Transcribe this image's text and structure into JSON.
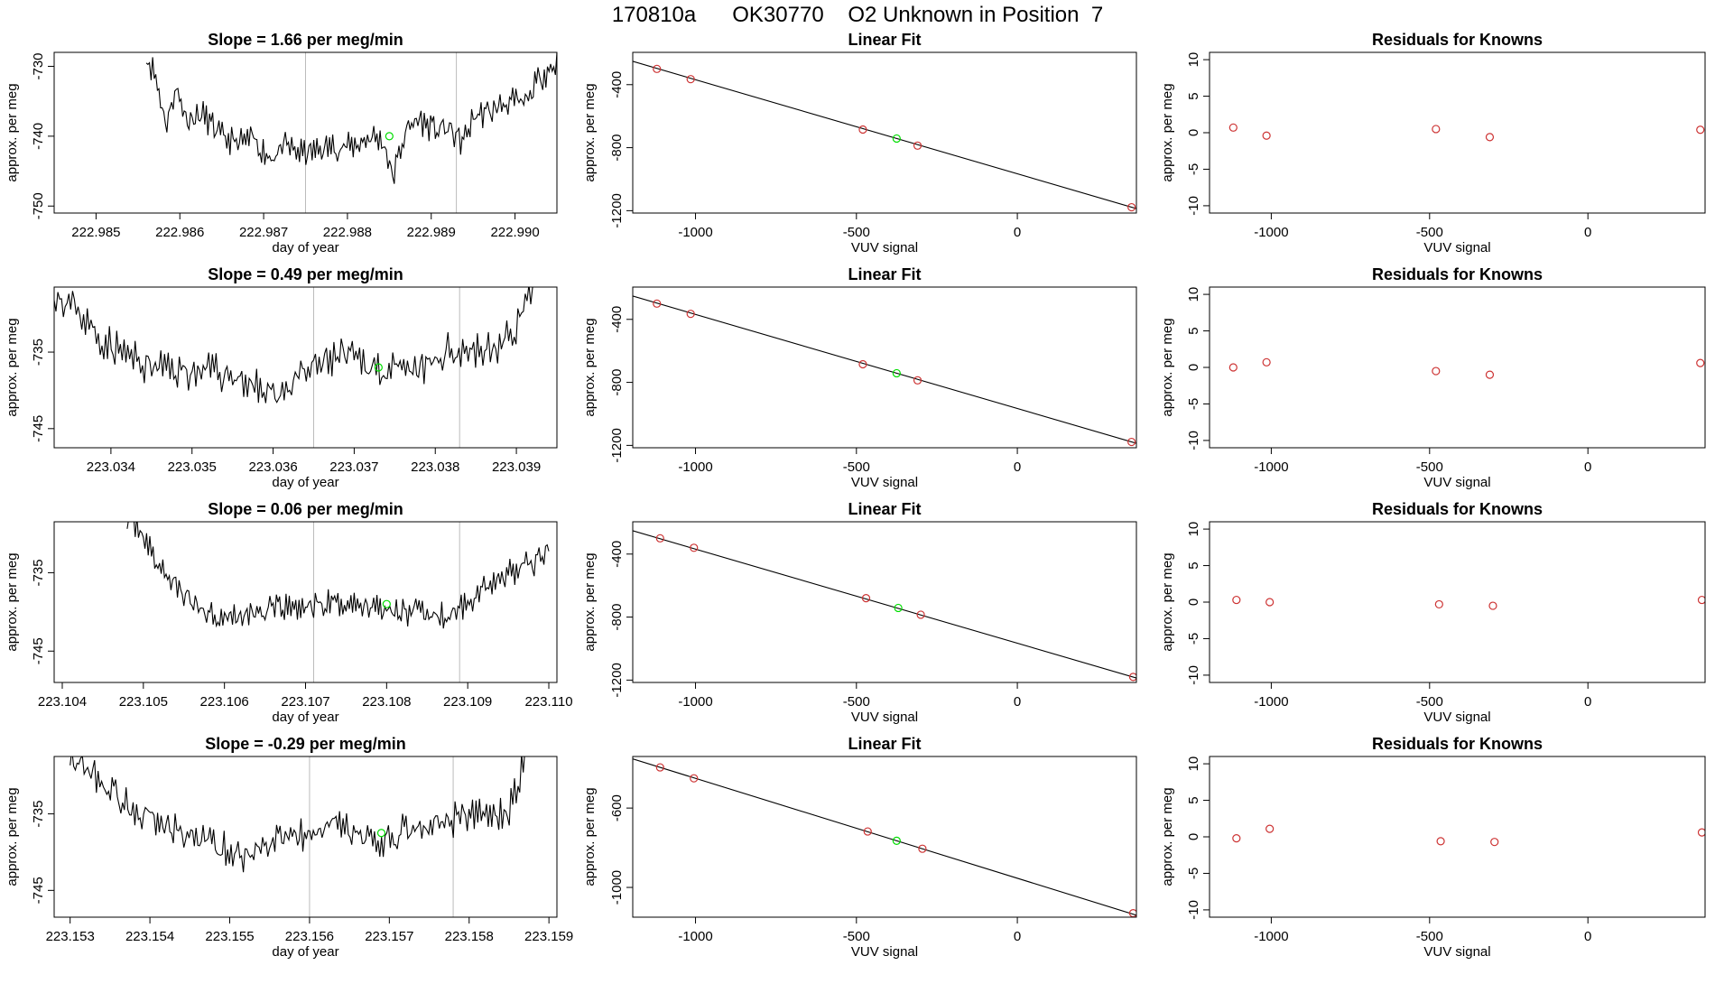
{
  "page_title": "170810a      OK30770    O2 Unknown in Position  7",
  "colors": {
    "trace": "#000000",
    "known_points": "#cd3333",
    "unknown_point": "#00dd00",
    "vertical_lines": "#bbbbbb",
    "fit_line": "#000000"
  },
  "chart_data": [
    {
      "type": "line",
      "row": 0,
      "col": 0,
      "title": "Slope =  1.66  per meg/min",
      "xlabel": "day of year",
      "ylabel": "approx. per meg",
      "xlim": [
        222.9845,
        222.9905
      ],
      "ylim": [
        -751,
        -728
      ],
      "xticks": [
        222.985,
        222.986,
        222.987,
        222.988,
        222.989,
        222.99
      ],
      "xtick_labels": [
        "222.985",
        "222.986",
        "222.987",
        "222.988",
        "222.989",
        "222.990"
      ],
      "yticks": [
        -730,
        -740,
        -750
      ],
      "ytick_labels": [
        "-730",
        "-740",
        "-750"
      ],
      "vlines": [
        222.9875,
        222.9893
      ],
      "x_start": 222.9856,
      "x_end": 222.9905,
      "series": [
        {
          "shape": [
            [
              0.0,
              -728.5
            ],
            [
              0.02,
              -731
            ],
            [
              0.05,
              -738.5
            ],
            [
              0.07,
              -733
            ],
            [
              0.1,
              -737.5
            ],
            [
              0.14,
              -737
            ],
            [
              0.18,
              -740
            ],
            [
              0.22,
              -741
            ],
            [
              0.26,
              -740.5
            ],
            [
              0.3,
              -743
            ],
            [
              0.34,
              -741.5
            ],
            [
              0.38,
              -742.5
            ],
            [
              0.42,
              -742
            ],
            [
              0.45,
              -741.5
            ],
            [
              0.5,
              -741.5
            ],
            [
              0.55,
              -740
            ],
            [
              0.58,
              -741
            ],
            [
              0.6,
              -746
            ],
            [
              0.63,
              -739.5
            ],
            [
              0.66,
              -737.5
            ],
            [
              0.7,
              -739
            ],
            [
              0.74,
              -739
            ],
            [
              0.77,
              -741
            ],
            [
              0.8,
              -737
            ],
            [
              0.84,
              -736.5
            ],
            [
              0.88,
              -735
            ],
            [
              0.92,
              -735.5
            ],
            [
              0.96,
              -731.5
            ],
            [
              1.0,
              -729.5
            ]
          ],
          "noise": 1.6,
          "seed": 11
        }
      ],
      "unknown_point": [
        222.9885,
        -740
      ]
    },
    {
      "type": "scatter",
      "row": 0,
      "col": 1,
      "title": "Linear Fit",
      "xlabel": "VUV signal",
      "ylabel": "approx. per meg",
      "xlim": [
        -1195,
        370
      ],
      "ylim": [
        -1215,
        -195
      ],
      "xticks": [
        -1000,
        -500,
        0
      ],
      "xtick_labels": [
        "-1000",
        "-500",
        "0"
      ],
      "yticks": [
        -400,
        -800,
        -1200
      ],
      "ytick_labels": [
        "-400",
        "-800",
        "-1200"
      ],
      "fit_line": [
        [
          -1195,
          -252
        ],
        [
          370,
          -1187
        ]
      ],
      "known_points": [
        [
          -1120,
          -300
        ],
        [
          -1015,
          -365
        ],
        [
          -480,
          -685
        ],
        [
          -310,
          -787
        ],
        [
          355,
          -1178
        ]
      ],
      "unknown_point": [
        -375,
        -742
      ]
    },
    {
      "type": "scatter",
      "row": 0,
      "col": 2,
      "title": "Residuals for Knowns",
      "xlabel": "VUV signal",
      "ylabel": "approx. per meg",
      "xlim": [
        -1195,
        370
      ],
      "ylim": [
        -11,
        11
      ],
      "xticks": [
        -1000,
        -500,
        0
      ],
      "xtick_labels": [
        "-1000",
        "-500",
        "0"
      ],
      "yticks": [
        10,
        5,
        0,
        -5,
        -10
      ],
      "ytick_labels": [
        "10",
        "5",
        "0",
        "-5",
        "-10"
      ],
      "known_points": [
        [
          -1120,
          0.7
        ],
        [
          -1015,
          -0.4
        ],
        [
          -480,
          0.5
        ],
        [
          -310,
          -0.6
        ],
        [
          355,
          0.4
        ]
      ]
    },
    {
      "type": "line",
      "row": 1,
      "col": 0,
      "title": "Slope =  0.49  per meg/min",
      "xlabel": "day of year",
      "ylabel": "approx. per meg",
      "xlim": [
        223.0333,
        223.0395
      ],
      "ylim": [
        -747.5,
        -726.5
      ],
      "xticks": [
        223.034,
        223.035,
        223.036,
        223.037,
        223.038,
        223.039
      ],
      "xtick_labels": [
        "223.034",
        "223.035",
        "223.036",
        "223.037",
        "223.038",
        "223.039"
      ],
      "yticks": [
        -735,
        -745
      ],
      "ytick_labels": [
        "-735",
        "-745"
      ],
      "vlines": [
        223.0365,
        223.0383
      ],
      "x_start": 223.0333,
      "x_end": 223.0392,
      "series": [
        {
          "shape": [
            [
              0.0,
              -727
            ],
            [
              0.05,
              -729.5
            ],
            [
              0.09,
              -733
            ],
            [
              0.13,
              -734.5
            ],
            [
              0.18,
              -736.5
            ],
            [
              0.22,
              -737
            ],
            [
              0.27,
              -737.5
            ],
            [
              0.32,
              -737.5
            ],
            [
              0.37,
              -738
            ],
            [
              0.41,
              -739
            ],
            [
              0.44,
              -740.5
            ],
            [
              0.48,
              -740
            ],
            [
              0.52,
              -738
            ],
            [
              0.56,
              -736.5
            ],
            [
              0.6,
              -735.5
            ],
            [
              0.65,
              -736.5
            ],
            [
              0.7,
              -737.5
            ],
            [
              0.74,
              -738
            ],
            [
              0.78,
              -737
            ],
            [
              0.82,
              -735
            ],
            [
              0.86,
              -734.5
            ],
            [
              0.9,
              -735
            ],
            [
              0.94,
              -734
            ],
            [
              0.97,
              -731
            ],
            [
              1.0,
              -726.5
            ]
          ],
          "noise": 1.9,
          "seed": 23
        }
      ],
      "unknown_point": [
        223.0373,
        -737
      ]
    },
    {
      "type": "scatter",
      "row": 1,
      "col": 1,
      "title": "Linear Fit",
      "xlabel": "VUV signal",
      "ylabel": "approx. per meg",
      "xlim": [
        -1195,
        370
      ],
      "ylim": [
        -1215,
        -195
      ],
      "xticks": [
        -1000,
        -500,
        0
      ],
      "xtick_labels": [
        "-1000",
        "-500",
        "0"
      ],
      "yticks": [
        -400,
        -800,
        -1200
      ],
      "ytick_labels": [
        "-400",
        "-800",
        "-1200"
      ],
      "fit_line": [
        [
          -1195,
          -252
        ],
        [
          370,
          -1187
        ]
      ],
      "known_points": [
        [
          -1120,
          -300
        ],
        [
          -1015,
          -365
        ],
        [
          -480,
          -685
        ],
        [
          -310,
          -787
        ],
        [
          355,
          -1178
        ]
      ],
      "unknown_point": [
        -375,
        -742
      ]
    },
    {
      "type": "scatter",
      "row": 1,
      "col": 2,
      "title": "Residuals for Knowns",
      "xlabel": "VUV signal",
      "ylabel": "approx. per meg",
      "xlim": [
        -1195,
        370
      ],
      "ylim": [
        -11,
        11
      ],
      "xticks": [
        -1000,
        -500,
        0
      ],
      "xtick_labels": [
        "-1000",
        "-500",
        "0"
      ],
      "yticks": [
        10,
        5,
        0,
        -5,
        -10
      ],
      "ytick_labels": [
        "10",
        "5",
        "0",
        "-5",
        "-10"
      ],
      "known_points": [
        [
          -1120,
          0.0
        ],
        [
          -1015,
          0.7
        ],
        [
          -480,
          -0.5
        ],
        [
          -310,
          -1.0
        ],
        [
          355,
          0.6
        ]
      ]
    },
    {
      "type": "line",
      "row": 2,
      "col": 0,
      "title": "Slope =  0.06  per meg/min",
      "xlabel": "day of year",
      "ylabel": "approx. per meg",
      "xlim": [
        223.1039,
        223.1101
      ],
      "ylim": [
        -749,
        -728.5
      ],
      "xticks": [
        223.104,
        223.105,
        223.106,
        223.107,
        223.108,
        223.109,
        223.11
      ],
      "xtick_labels": [
        "223.104",
        "223.105",
        "223.106",
        "223.107",
        "223.108",
        "223.109",
        "223.110"
      ],
      "yticks": [
        -735,
        -745
      ],
      "ytick_labels": [
        "-735",
        "-745"
      ],
      "vlines": [
        223.1071,
        223.1089
      ],
      "x_start": 223.1048,
      "x_end": 223.11,
      "series": [
        {
          "shape": [
            [
              0.0,
              -728.5
            ],
            [
              0.03,
              -729
            ],
            [
              0.06,
              -733
            ],
            [
              0.09,
              -735
            ],
            [
              0.13,
              -737.5
            ],
            [
              0.17,
              -739.5
            ],
            [
              0.22,
              -740.5
            ],
            [
              0.27,
              -740.5
            ],
            [
              0.32,
              -740
            ],
            [
              0.37,
              -739.5
            ],
            [
              0.42,
              -739.5
            ],
            [
              0.47,
              -739
            ],
            [
              0.52,
              -739
            ],
            [
              0.57,
              -739
            ],
            [
              0.62,
              -739.5
            ],
            [
              0.67,
              -740
            ],
            [
              0.72,
              -740.5
            ],
            [
              0.77,
              -740.5
            ],
            [
              0.81,
              -738.5
            ],
            [
              0.85,
              -736.5
            ],
            [
              0.89,
              -735.5
            ],
            [
              0.93,
              -734.5
            ],
            [
              0.97,
              -733.5
            ],
            [
              1.0,
              -732
            ]
          ],
          "noise": 1.4,
          "seed": 37
        }
      ],
      "unknown_point": [
        223.108,
        -739
      ]
    },
    {
      "type": "scatter",
      "row": 2,
      "col": 1,
      "title": "Linear Fit",
      "xlabel": "VUV signal",
      "ylabel": "approx. per meg",
      "xlim": [
        -1195,
        370
      ],
      "ylim": [
        -1215,
        -195
      ],
      "xticks": [
        -1000,
        -500,
        0
      ],
      "xtick_labels": [
        "-1000",
        "-500",
        "0"
      ],
      "yticks": [
        -400,
        -800,
        -1200
      ],
      "ytick_labels": [
        "-400",
        "-800",
        "-1200"
      ],
      "fit_line": [
        [
          -1195,
          -252
        ],
        [
          370,
          -1187
        ]
      ],
      "known_points": [
        [
          -1110,
          -300
        ],
        [
          -1005,
          -360
        ],
        [
          -470,
          -680
        ],
        [
          -300,
          -785
        ],
        [
          360,
          -1180
        ]
      ],
      "unknown_point": [
        -370,
        -742
      ]
    },
    {
      "type": "scatter",
      "row": 2,
      "col": 2,
      "title": "Residuals for Knowns",
      "xlabel": "VUV signal",
      "ylabel": "approx. per meg",
      "xlim": [
        -1195,
        370
      ],
      "ylim": [
        -11,
        11
      ],
      "xticks": [
        -1000,
        -500,
        0
      ],
      "xtick_labels": [
        "-1000",
        "-500",
        "0"
      ],
      "yticks": [
        10,
        5,
        0,
        -5,
        -10
      ],
      "ytick_labels": [
        "10",
        "5",
        "0",
        "-5",
        "-10"
      ],
      "known_points": [
        [
          -1110,
          0.3
        ],
        [
          -1005,
          0.0
        ],
        [
          -470,
          -0.3
        ],
        [
          -300,
          -0.5
        ],
        [
          360,
          0.3
        ]
      ]
    },
    {
      "type": "line",
      "row": 3,
      "col": 0,
      "title": "Slope =  -0.29  per meg/min",
      "xlabel": "day of year",
      "ylabel": "approx. per meg",
      "xlim": [
        223.1528,
        223.1591
      ],
      "ylim": [
        -748.5,
        -727.5
      ],
      "xticks": [
        223.153,
        223.154,
        223.155,
        223.156,
        223.157,
        223.158,
        223.159
      ],
      "xtick_labels": [
        "223.153",
        "223.154",
        "223.155",
        "223.156",
        "223.157",
        "223.158",
        "223.159"
      ],
      "yticks": [
        -735,
        -745
      ],
      "ytick_labels": [
        "-735",
        "-745"
      ],
      "vlines": [
        223.156,
        223.1578
      ],
      "x_start": 223.153,
      "x_end": 223.1587,
      "series": [
        {
          "shape": [
            [
              0.0,
              -727.5
            ],
            [
              0.04,
              -729
            ],
            [
              0.09,
              -732
            ],
            [
              0.13,
              -734
            ],
            [
              0.18,
              -735.5
            ],
            [
              0.22,
              -737
            ],
            [
              0.27,
              -738
            ],
            [
              0.32,
              -739
            ],
            [
              0.37,
              -740.5
            ],
            [
              0.41,
              -739.5
            ],
            [
              0.45,
              -738.5
            ],
            [
              0.5,
              -738
            ],
            [
              0.55,
              -737.5
            ],
            [
              0.58,
              -736.5
            ],
            [
              0.62,
              -737.5
            ],
            [
              0.66,
              -739
            ],
            [
              0.7,
              -738.5
            ],
            [
              0.74,
              -737
            ],
            [
              0.78,
              -736.5
            ],
            [
              0.82,
              -736
            ],
            [
              0.86,
              -735.5
            ],
            [
              0.9,
              -735
            ],
            [
              0.94,
              -735.5
            ],
            [
              0.97,
              -734
            ],
            [
              1.0,
              -727.5
            ]
          ],
          "noise": 1.8,
          "seed": 53
        }
      ],
      "unknown_point": [
        223.1569,
        -737.5
      ]
    },
    {
      "type": "scatter",
      "row": 3,
      "col": 1,
      "title": "Linear Fit",
      "xlabel": "VUV signal",
      "ylabel": "approx. per meg",
      "xlim": [
        -1195,
        370
      ],
      "ylim": [
        -1150,
        -340
      ],
      "xticks": [
        -1000,
        -500,
        0
      ],
      "xtick_labels": [
        "-1000",
        "-500",
        "0"
      ],
      "yticks": [
        -600,
        -1000
      ],
      "ytick_labels": [
        "-600",
        "-1000"
      ],
      "fit_line": [
        [
          -1195,
          -352
        ],
        [
          370,
          -1140
        ]
      ],
      "known_points": [
        [
          -1110,
          -395
        ],
        [
          -1005,
          -450
        ],
        [
          -465,
          -718
        ],
        [
          -295,
          -805
        ],
        [
          360,
          -1130
        ]
      ],
      "unknown_point": [
        -375,
        -765
      ]
    },
    {
      "type": "scatter",
      "row": 3,
      "col": 2,
      "title": "Residuals for Knowns",
      "xlabel": "VUV signal",
      "ylabel": "approx. per meg",
      "xlim": [
        -1195,
        370
      ],
      "ylim": [
        -11,
        11
      ],
      "xticks": [
        -1000,
        -500,
        0
      ],
      "xtick_labels": [
        "-1000",
        "-500",
        "0"
      ],
      "yticks": [
        10,
        5,
        0,
        -5,
        -10
      ],
      "ytick_labels": [
        "10",
        "5",
        "0",
        "-5",
        "-10"
      ],
      "known_points": [
        [
          -1110,
          -0.2
        ],
        [
          -1005,
          1.1
        ],
        [
          -465,
          -0.6
        ],
        [
          -295,
          -0.7
        ],
        [
          360,
          0.6
        ]
      ]
    }
  ]
}
